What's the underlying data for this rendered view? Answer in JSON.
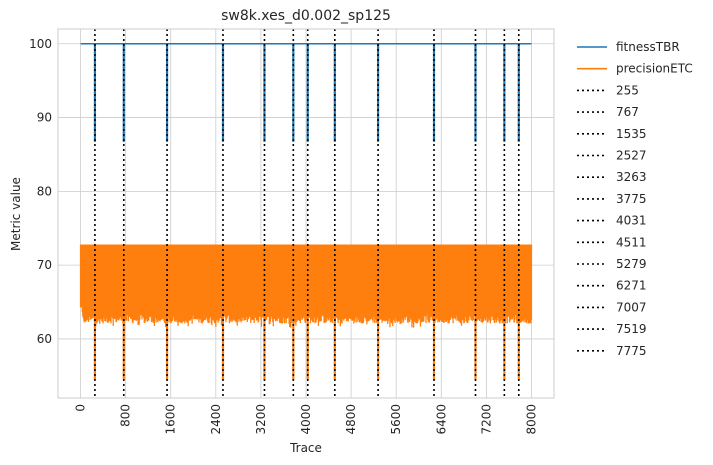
{
  "chart_data": {
    "type": "line",
    "title": "sw8k.xes_d0.002_sp125",
    "xlabel": "Trace",
    "ylabel": "Metric value",
    "xlim": [
      -400,
      8400
    ],
    "ylim": [
      52,
      102
    ],
    "xticks": [
      "0",
      "800",
      "1600",
      "2400",
      "3200",
      "4000",
      "4800",
      "5600",
      "6400",
      "7200",
      "8000"
    ],
    "yticks": [
      "60",
      "70",
      "80",
      "90",
      "100"
    ],
    "grid": true,
    "legend_position": "outside-right",
    "series": [
      {
        "name": "fitnessTBR",
        "color": "#1f77b4",
        "baseline": 100,
        "drop_min": 86.7,
        "x": [
          0,
          8000
        ]
      },
      {
        "name": "precisionETC",
        "color": "#ff7f0e",
        "band_upper": 72.8,
        "band_lower_typical": 62.5,
        "band_lower_min": 61.5,
        "drop_min": 54.5,
        "x": [
          0,
          8000
        ]
      }
    ],
    "change_points": [
      "255",
      "767",
      "1535",
      "2527",
      "3263",
      "3775",
      "4031",
      "4511",
      "5279",
      "6271",
      "7007",
      "7519",
      "7775"
    ],
    "change_point_style": "black dotted"
  }
}
